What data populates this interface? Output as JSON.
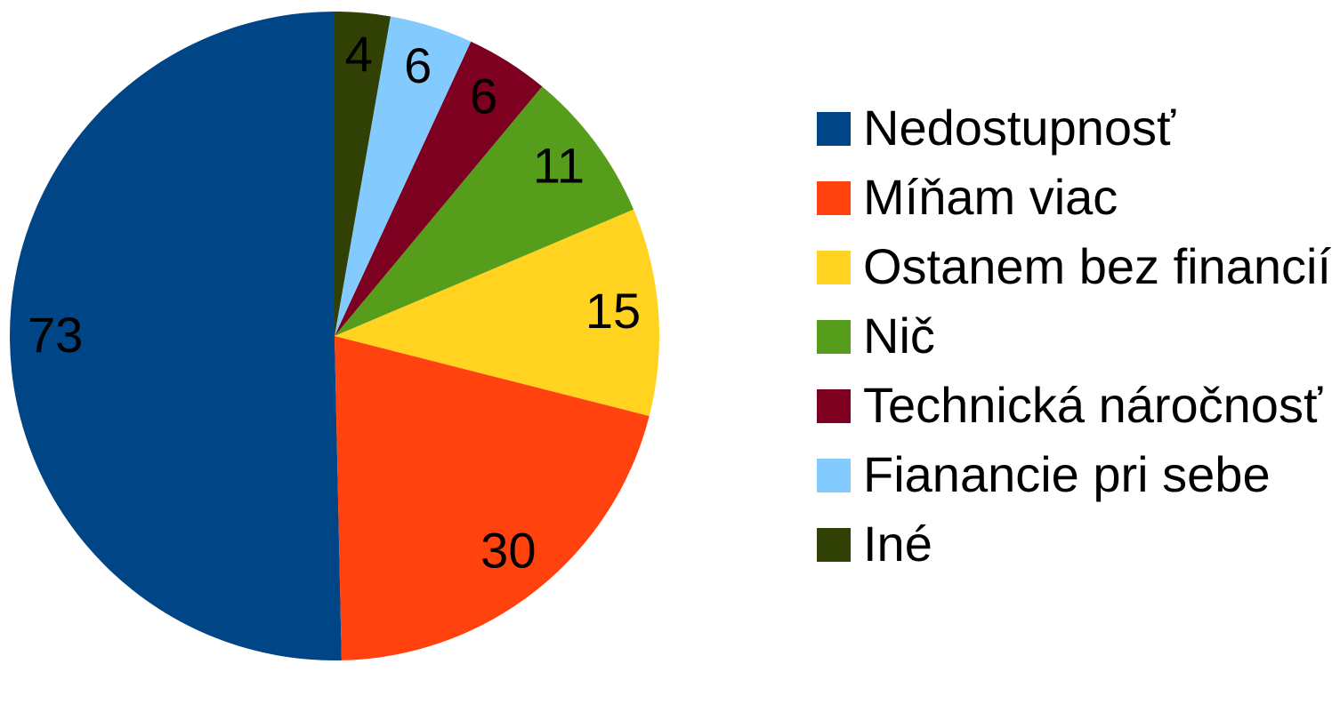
{
  "chart_data": {
    "type": "pie",
    "categories": [
      "Nedostupnosť",
      "Míňam viac",
      "Ostanem bez financií",
      "Nič",
      "Technická náročnosť",
      "Fianancie pri sebe",
      "Iné"
    ],
    "values": [
      73,
      30,
      15,
      11,
      6,
      6,
      4
    ],
    "colors": [
      "#004586",
      "#ff420e",
      "#ffd320",
      "#579d1c",
      "#7e0021",
      "#83caff",
      "#314004"
    ],
    "legend": "right"
  }
}
